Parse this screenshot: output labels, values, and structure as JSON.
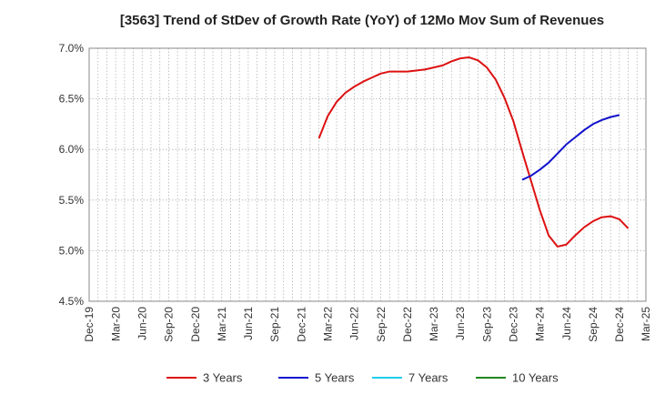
{
  "chart_data": {
    "type": "line",
    "title": "[3563]  Trend of StDev of Growth Rate (YoY) of 12Mo Mov Sum of Revenues",
    "xlabel": "",
    "ylabel": "",
    "ylim": [
      4.5,
      7.0
    ],
    "y_ticks": [
      4.5,
      5.0,
      5.5,
      6.0,
      6.5,
      7.0
    ],
    "y_tick_labels": [
      "4.5%",
      "5.0%",
      "5.5%",
      "6.0%",
      "6.5%",
      "7.0%"
    ],
    "x_start": "2019-12",
    "x_end": "2025-03",
    "x_tick_labels": [
      "Dec-19",
      "Mar-20",
      "Jun-20",
      "Sep-20",
      "Dec-20",
      "Mar-21",
      "Jun-21",
      "Sep-21",
      "Dec-21",
      "Mar-22",
      "Jun-22",
      "Sep-22",
      "Dec-22",
      "Mar-23",
      "Jun-23",
      "Sep-23",
      "Dec-23",
      "Mar-24",
      "Jun-24",
      "Sep-24",
      "Dec-24",
      "Mar-25"
    ],
    "grid": true,
    "legend_position": "bottom",
    "series": [
      {
        "name": "3 Years",
        "color": "#dd1111",
        "start": "2022-02",
        "values": [
          6.11,
          6.33,
          6.47,
          6.56,
          6.62,
          6.67,
          6.71,
          6.75,
          6.77,
          6.77,
          6.77,
          6.78,
          6.79,
          6.81,
          6.83,
          6.87,
          6.9,
          6.91,
          6.88,
          6.81,
          6.69,
          6.51,
          6.28,
          5.98,
          5.69,
          5.4,
          5.15,
          5.04,
          5.06,
          5.15,
          5.23,
          5.29,
          5.33,
          5.34,
          5.31,
          5.22
        ]
      },
      {
        "name": "5 Years",
        "color": "#1111cc",
        "start": "2024-01",
        "values": [
          5.7,
          5.74,
          5.8,
          5.87,
          5.96,
          6.05,
          6.12,
          6.19,
          6.25,
          6.29,
          6.32,
          6.34
        ]
      },
      {
        "name": "7 Years",
        "color": "#22ccee",
        "start": null,
        "values": []
      },
      {
        "name": "10 Years",
        "color": "#228822",
        "start": null,
        "values": []
      }
    ]
  }
}
